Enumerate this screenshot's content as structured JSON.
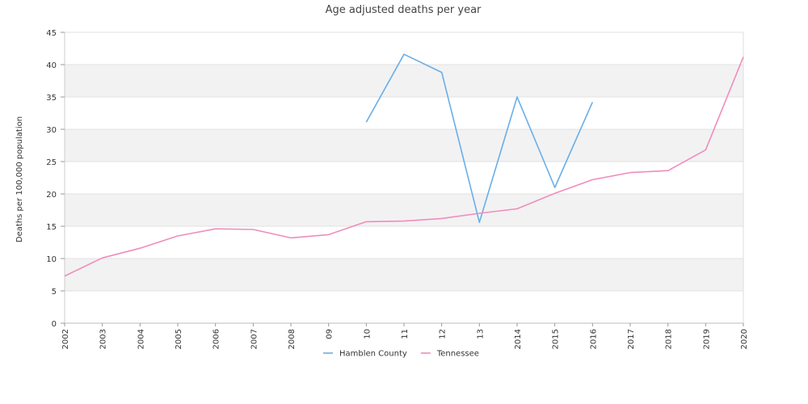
{
  "chart_data": {
    "type": "line",
    "title": "Age adjusted deaths per year",
    "xlabel": "",
    "ylabel": "Deaths per 100,000 population",
    "categories": [
      "2002",
      "2003",
      "2004",
      "2005",
      "2006",
      "2007",
      "2008",
      "09",
      "10",
      "11",
      "12",
      "13",
      "2014",
      "2015",
      "2016",
      "2017",
      "2018",
      "2019",
      "2020"
    ],
    "ylim": [
      0,
      45
    ],
    "yticks": [
      0,
      5,
      10,
      15,
      20,
      25,
      30,
      35,
      40,
      45
    ],
    "grid": true,
    "legend_position": "bottom",
    "series": [
      {
        "name": "Hamblen County",
        "color": "#6aaee8",
        "values": [
          null,
          null,
          null,
          null,
          null,
          null,
          null,
          null,
          31.1,
          41.6,
          38.8,
          15.6,
          35.0,
          21.0,
          34.2,
          null,
          null,
          null,
          null
        ]
      },
      {
        "name": "Tennessee",
        "color": "#f08cbd",
        "values": [
          7.3,
          10.1,
          11.6,
          13.5,
          14.6,
          14.5,
          13.2,
          13.7,
          15.7,
          15.8,
          16.2,
          17.0,
          17.7,
          20.1,
          22.2,
          23.3,
          23.6,
          26.8,
          41.2
        ]
      }
    ]
  }
}
